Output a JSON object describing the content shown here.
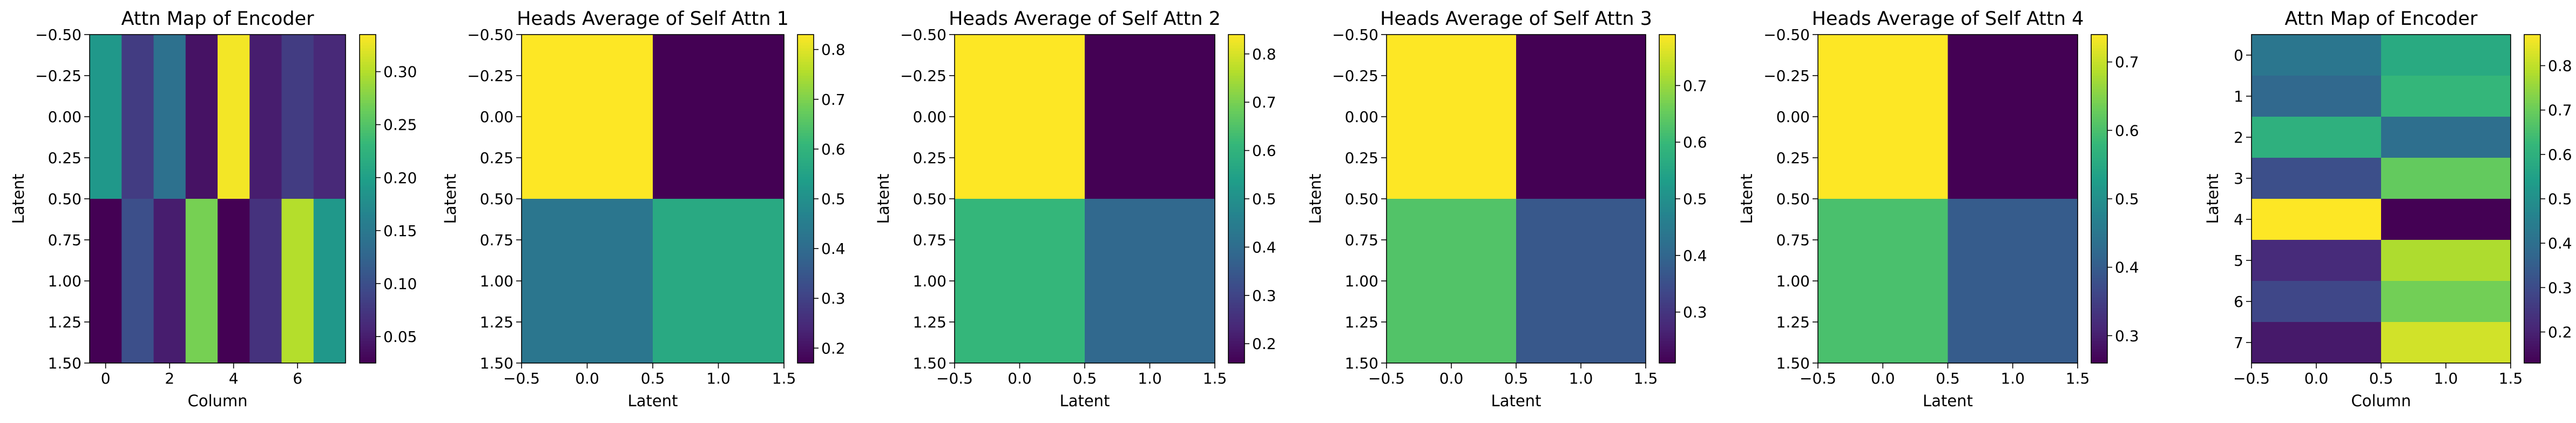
{
  "colormap": {
    "name": "viridis",
    "stops": [
      "#440154",
      "#482878",
      "#3e4989",
      "#31688e",
      "#26828e",
      "#1f9e89",
      "#35b779",
      "#6ece58",
      "#b5de2b",
      "#fde725"
    ]
  },
  "chart_data": [
    {
      "type": "heatmap",
      "title": "Attn Map of Encoder",
      "xlabel": "Column",
      "ylabel": "Latent",
      "x_ticks": [
        "0",
        "2",
        "4",
        "6"
      ],
      "y_ticks": [
        "−0.50",
        "−0.25",
        "0.00",
        "0.25",
        "0.50",
        "0.75",
        "1.00",
        "1.25",
        "1.50"
      ],
      "xlim": [
        -0.5,
        7.5
      ],
      "ylim": [
        1.5,
        -0.5
      ],
      "rows": 2,
      "cols": 8,
      "values": [
        [
          0.19,
          0.08,
          0.14,
          0.04,
          0.33,
          0.05,
          0.08,
          0.06
        ],
        [
          0.02,
          0.1,
          0.05,
          0.27,
          0.02,
          0.07,
          0.3,
          0.19
        ]
      ],
      "colorbar": {
        "vmin": 0.025,
        "vmax": 0.335,
        "ticks": [
          "0.05",
          "0.10",
          "0.15",
          "0.20",
          "0.25",
          "0.30"
        ]
      }
    },
    {
      "type": "heatmap",
      "title": "Heads Average of Self Attn 1",
      "xlabel": "Latent",
      "ylabel": "Latent",
      "x_ticks": [
        "−0.5",
        "0.0",
        "0.5",
        "1.0",
        "1.5"
      ],
      "y_ticks": [
        "−0.50",
        "−0.25",
        "0.00",
        "0.25",
        "0.50",
        "0.75",
        "1.00",
        "1.25",
        "1.50"
      ],
      "xlim": [
        -0.5,
        1.5
      ],
      "ylim": [
        1.5,
        -0.5
      ],
      "rows": 2,
      "cols": 2,
      "values": [
        [
          0.83,
          0.17
        ],
        [
          0.43,
          0.57
        ]
      ],
      "colorbar": {
        "vmin": 0.17,
        "vmax": 0.83,
        "ticks": [
          "0.2",
          "0.3",
          "0.4",
          "0.5",
          "0.6",
          "0.7",
          "0.8"
        ]
      }
    },
    {
      "type": "heatmap",
      "title": "Heads Average of Self Attn 2",
      "xlabel": "Latent",
      "ylabel": "Latent",
      "x_ticks": [
        "−0.5",
        "0.0",
        "0.5",
        "1.0",
        "1.5"
      ],
      "y_ticks": [
        "−0.50",
        "−0.25",
        "0.00",
        "0.25",
        "0.50",
        "0.75",
        "1.00",
        "1.25",
        "1.50"
      ],
      "xlim": [
        -0.5,
        1.5
      ],
      "ylim": [
        1.5,
        -0.5
      ],
      "rows": 2,
      "cols": 2,
      "values": [
        [
          0.84,
          0.16
        ],
        [
          0.61,
          0.39
        ]
      ],
      "colorbar": {
        "vmin": 0.16,
        "vmax": 0.84,
        "ticks": [
          "0.2",
          "0.3",
          "0.4",
          "0.5",
          "0.6",
          "0.7",
          "0.8"
        ]
      }
    },
    {
      "type": "heatmap",
      "title": "Heads Average of Self Attn 3",
      "xlabel": "Latent",
      "ylabel": "Latent",
      "x_ticks": [
        "−0.5",
        "0.0",
        "0.5",
        "1.0",
        "1.5"
      ],
      "y_ticks": [
        "−0.50",
        "−0.25",
        "0.00",
        "0.25",
        "0.50",
        "0.75",
        "1.00",
        "1.25",
        "1.50"
      ],
      "xlim": [
        -0.5,
        1.5
      ],
      "ylim": [
        1.5,
        -0.5
      ],
      "rows": 2,
      "cols": 2,
      "values": [
        [
          0.79,
          0.21
        ],
        [
          0.63,
          0.37
        ]
      ],
      "colorbar": {
        "vmin": 0.21,
        "vmax": 0.79,
        "ticks": [
          "0.3",
          "0.4",
          "0.5",
          "0.6",
          "0.7"
        ]
      }
    },
    {
      "type": "heatmap",
      "title": "Heads Average of Self Attn 4",
      "xlabel": "Latent",
      "ylabel": "Latent",
      "x_ticks": [
        "−0.5",
        "0.0",
        "0.5",
        "1.0",
        "1.5"
      ],
      "y_ticks": [
        "−0.50",
        "−0.25",
        "0.00",
        "0.25",
        "0.50",
        "0.75",
        "1.00",
        "1.25",
        "1.50"
      ],
      "xlim": [
        -0.5,
        1.5
      ],
      "ylim": [
        1.5,
        -0.5
      ],
      "rows": 2,
      "cols": 2,
      "values": [
        [
          0.74,
          0.26
        ],
        [
          0.6,
          0.4
        ]
      ],
      "colorbar": {
        "vmin": 0.26,
        "vmax": 0.74,
        "ticks": [
          "0.3",
          "0.4",
          "0.5",
          "0.6",
          "0.7"
        ]
      }
    },
    {
      "type": "heatmap",
      "title": "Attn Map of Encoder",
      "xlabel": "Column",
      "ylabel": "Latent",
      "x_ticks": [
        "−0.5",
        "0.0",
        "0.5",
        "1.0",
        "1.5"
      ],
      "y_ticks": [
        "0",
        "1",
        "2",
        "3",
        "4",
        "5",
        "6",
        "7"
      ],
      "xlim": [
        -0.5,
        1.5
      ],
      "ylim": [
        7.5,
        -0.5
      ],
      "rows": 8,
      "cols": 2,
      "values": [
        [
          0.42,
          0.58
        ],
        [
          0.38,
          0.62
        ],
        [
          0.6,
          0.4
        ],
        [
          0.31,
          0.69
        ],
        [
          0.87,
          0.13
        ],
        [
          0.22,
          0.78
        ],
        [
          0.29,
          0.71
        ],
        [
          0.18,
          0.82
        ]
      ],
      "colorbar": {
        "vmin": 0.13,
        "vmax": 0.87,
        "ticks": [
          "0.2",
          "0.3",
          "0.4",
          "0.5",
          "0.6",
          "0.7",
          "0.8"
        ]
      }
    }
  ]
}
